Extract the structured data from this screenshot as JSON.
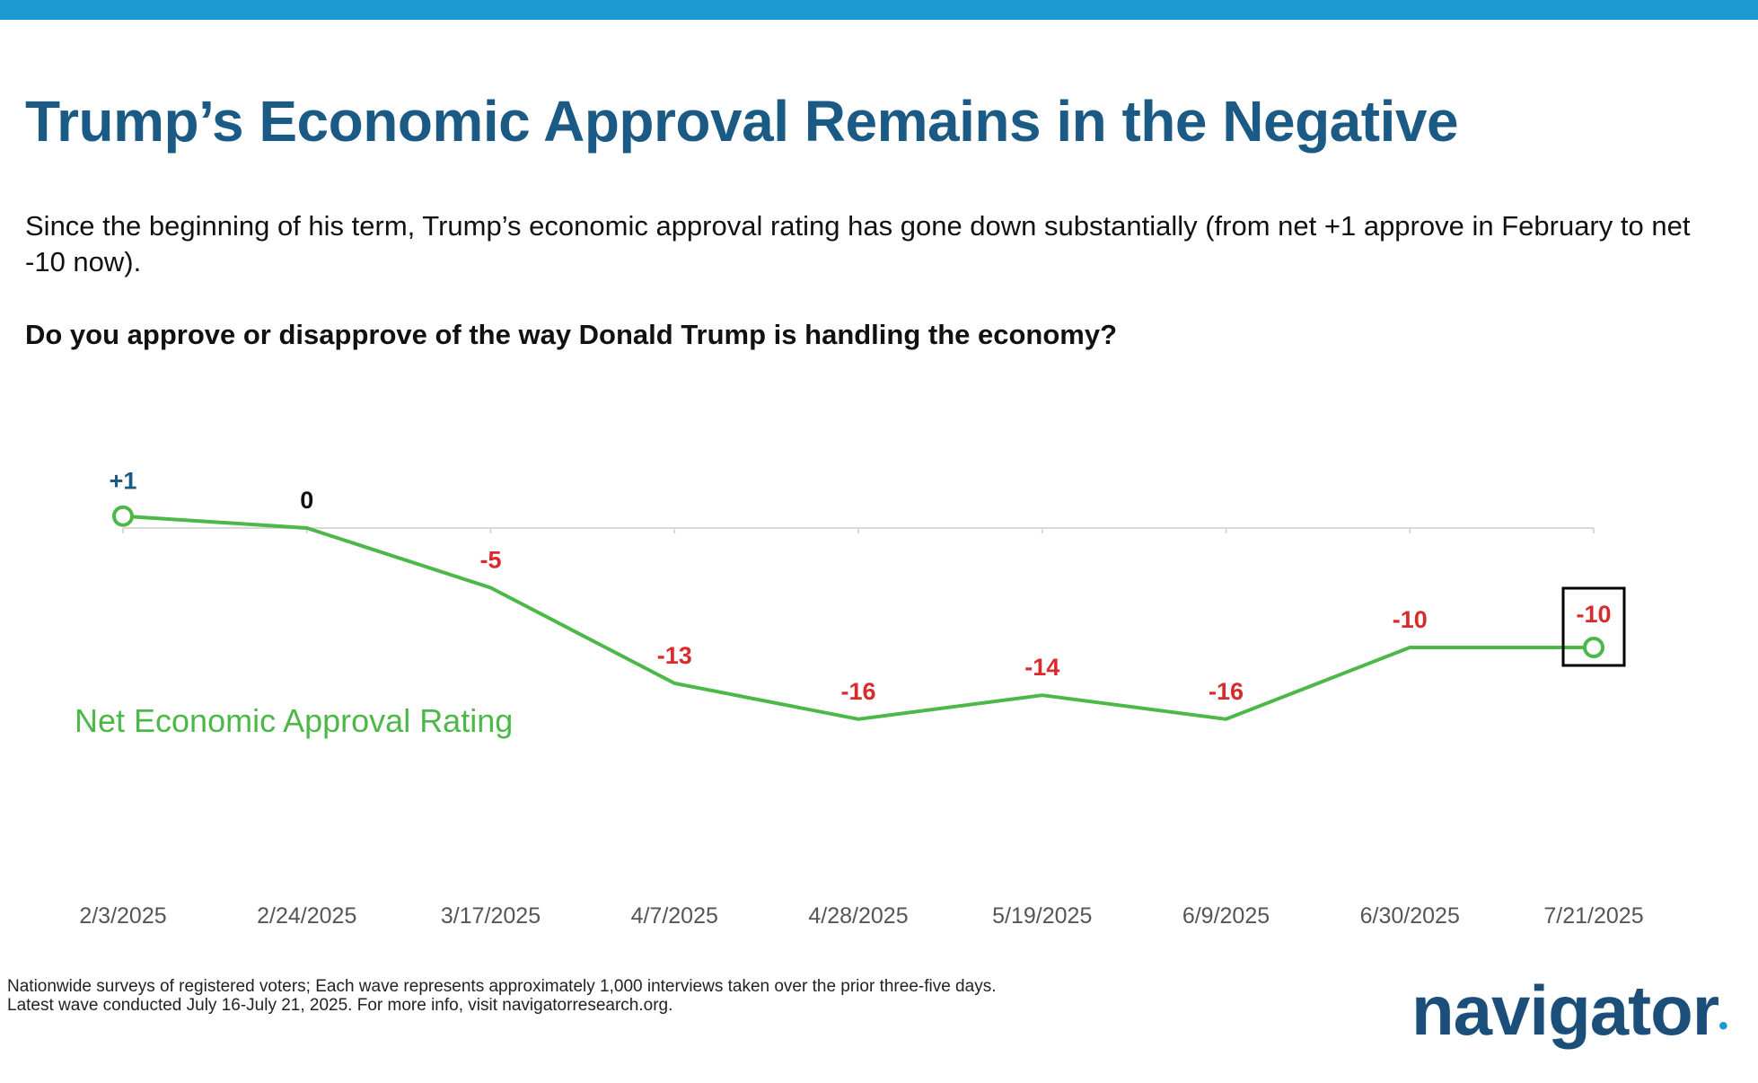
{
  "slide": {
    "title": "Trump’s Economic Approval Remains in the Negative",
    "subtitle": "Since the beginning of his term, Trump’s economic approval rating has gone down substantially (from net +1 approve in February to net -10 now).",
    "question": "Do you approve or disapprove of the way Donald Trump is handling the economy?",
    "footnote_line1": "Nationwide surveys of registered voters; Each wave represents approximately 1,000 interviews taken over the prior three-five days.",
    "footnote_line2": "Latest wave conducted July 16-July 21, 2025. For more info, visit navigatorresearch.org.",
    "logo_text": "navigator",
    "logo_dot": "•"
  },
  "chart_data": {
    "type": "line",
    "categories": [
      "2/3/2025",
      "2/24/2025",
      "3/17/2025",
      "4/7/2025",
      "4/28/2025",
      "5/19/2025",
      "6/9/2025",
      "6/30/2025",
      "7/21/2025"
    ],
    "series": [
      {
        "name": "Net Economic Approval Rating",
        "values": [
          1,
          0,
          -5,
          -13,
          -16,
          -14,
          -16,
          -10,
          -10
        ],
        "labels": [
          "+1",
          "0",
          "-5",
          "-13",
          "-16",
          "-14",
          "-16",
          "-10",
          "-10"
        ],
        "color": "#4cb848"
      }
    ],
    "ylim": [
      -16,
      1
    ],
    "zero_line": true,
    "highlight_last_point": true,
    "colors": {
      "positive_label": "#1b5a84",
      "zero_label": "#111111",
      "negative_label": "#d92b2b",
      "axis_label": "#555555",
      "zero_line": "#d8d8d8",
      "highlight_box": "#000000"
    }
  }
}
